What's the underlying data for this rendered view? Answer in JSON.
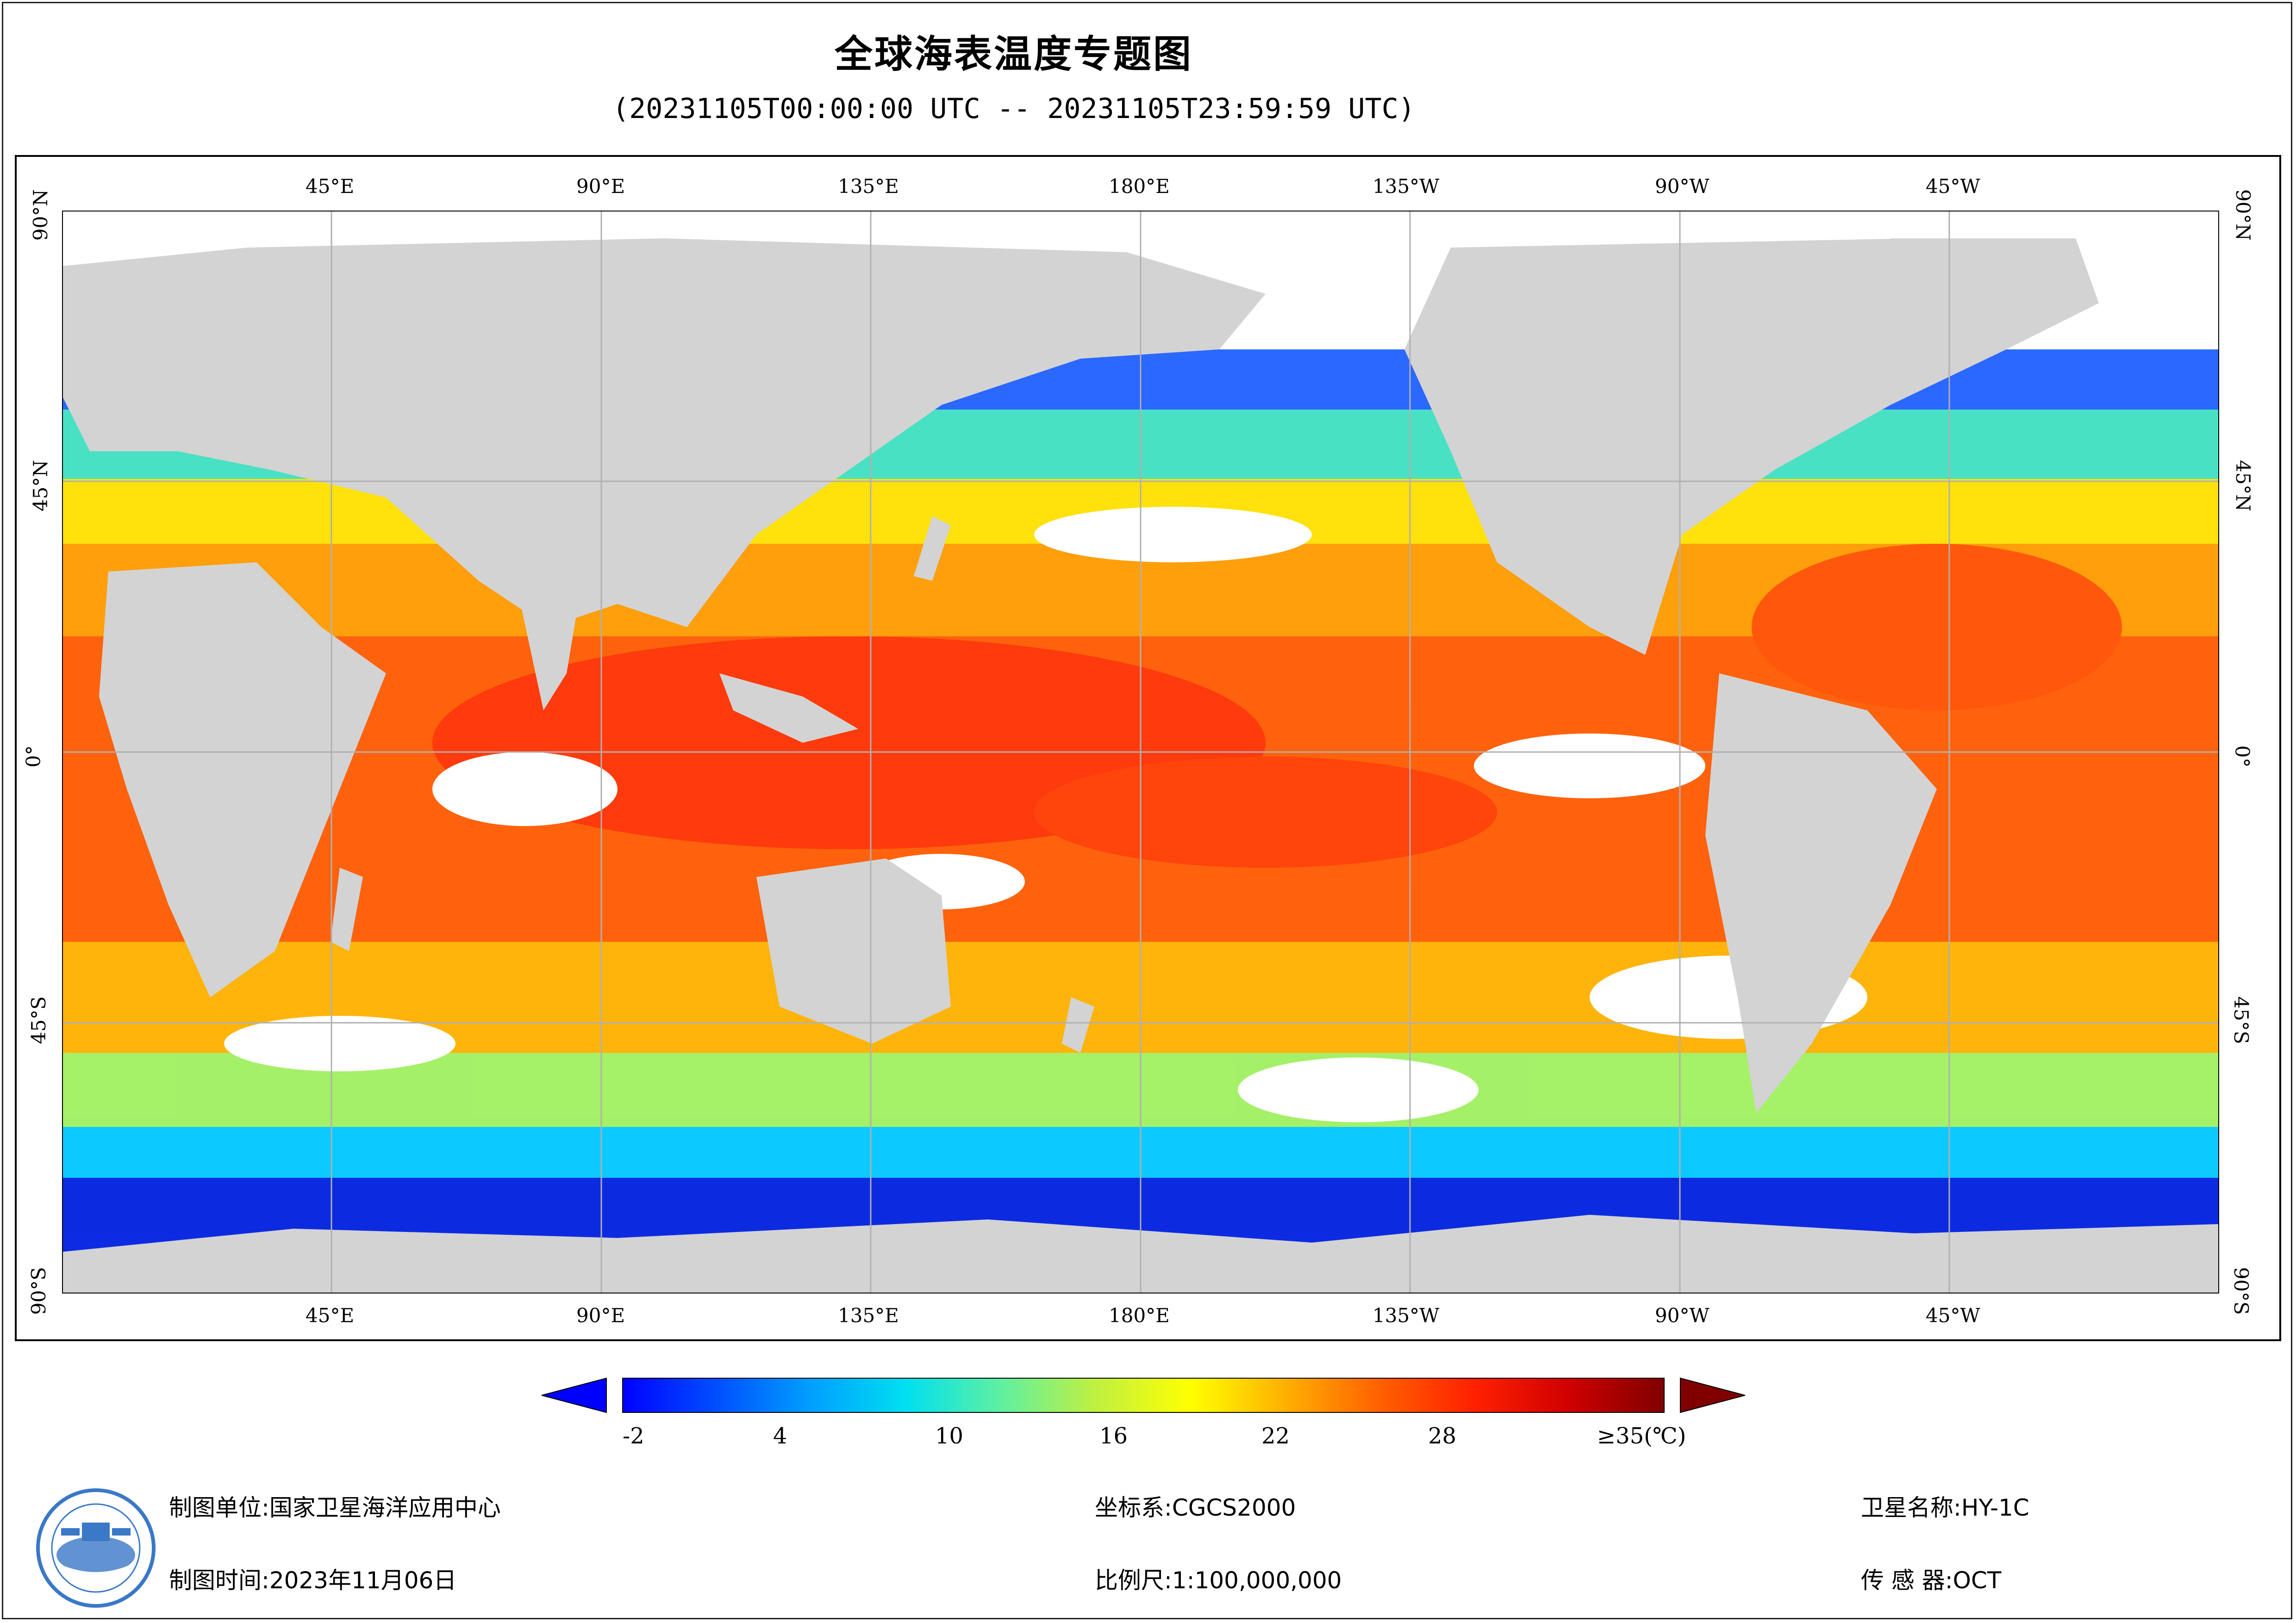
{
  "title": "全球海表温度专题图",
  "subtitle": "(20231105T00:00:00 UTC -- 20231105T23:59:59 UTC)",
  "map": {
    "lon_ticks": [
      "45°E",
      "90°E",
      "135°E",
      "180°E",
      "135°W",
      "90°W",
      "45°W"
    ],
    "lat_ticks": [
      "90°N",
      "45°N",
      "0°",
      "45°S",
      "90°S"
    ],
    "land_color": "#d3d3d3",
    "ocean_nodata_color": "#ffffff",
    "grid_color": "#b0b0b0"
  },
  "colorbar": {
    "ticks": [
      "-2",
      "4",
      "10",
      "16",
      "22",
      "28",
      "≥35(℃)"
    ],
    "min": -2,
    "max": 35,
    "stops": [
      "#0000ff",
      "#0050ff",
      "#00a0ff",
      "#00e0f0",
      "#60f0a0",
      "#c0f040",
      "#ffff00",
      "#ffb000",
      "#ff6000",
      "#ff2000",
      "#d00000",
      "#800000"
    ],
    "under_color": "#0000ff",
    "over_color": "#800000"
  },
  "footer": {
    "unit_label": "制图单位:",
    "unit_value": "国家卫星海洋应用中心",
    "time_label": "制图时间:",
    "time_value": "2023年11月06日",
    "crs_label": "坐标系:",
    "crs_value": "CGCS2000",
    "scale_label": "比例尺:",
    "scale_value": "1:100,000,000",
    "sat_label": "卫星名称:",
    "sat_value": "HY-1C",
    "sensor_label": "传 感 器:",
    "sensor_value": "OCT"
  }
}
